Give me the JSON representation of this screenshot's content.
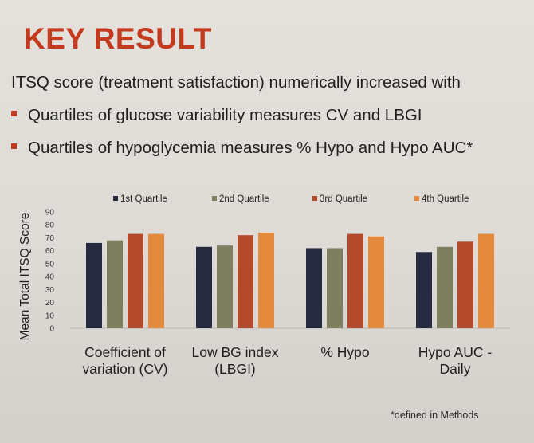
{
  "slide": {
    "title": "KEY RESULT",
    "intro": "ITSQ score (treatment satisfaction) numerically increased with",
    "bullets": [
      "Quartiles of glucose variability measures CV and LBGI",
      "Quartiles of hypoglycemia measures % Hypo and Hypo AUC*"
    ],
    "footnote": "*defined in Methods",
    "bullet_color": "#c33a1f"
  },
  "chart_data": {
    "type": "bar",
    "ylabel": "Mean Total ITSQ Score",
    "ylim": [
      0,
      90
    ],
    "yticks": [
      0,
      10,
      20,
      30,
      40,
      50,
      60,
      70,
      80,
      90
    ],
    "grid": false,
    "legend_position": "top",
    "categories": [
      [
        "Coefficient of",
        "variation (CV)"
      ],
      [
        "Low BG index",
        "(LBGI)"
      ],
      [
        "% Hypo"
      ],
      [
        "Hypo AUC -",
        "Daily"
      ]
    ],
    "series": [
      {
        "name": "1st Quartile",
        "color": "#262a3f",
        "values": [
          66,
          63,
          62,
          59
        ]
      },
      {
        "name": "2nd Quartile",
        "color": "#7d8060",
        "values": [
          68,
          64,
          62,
          63
        ]
      },
      {
        "name": "3rd Quartile",
        "color": "#b44a2c",
        "values": [
          73,
          72,
          73,
          67
        ]
      },
      {
        "name": "4th Quartile",
        "color": "#e48a3e",
        "values": [
          73,
          74,
          71,
          73
        ]
      }
    ]
  }
}
